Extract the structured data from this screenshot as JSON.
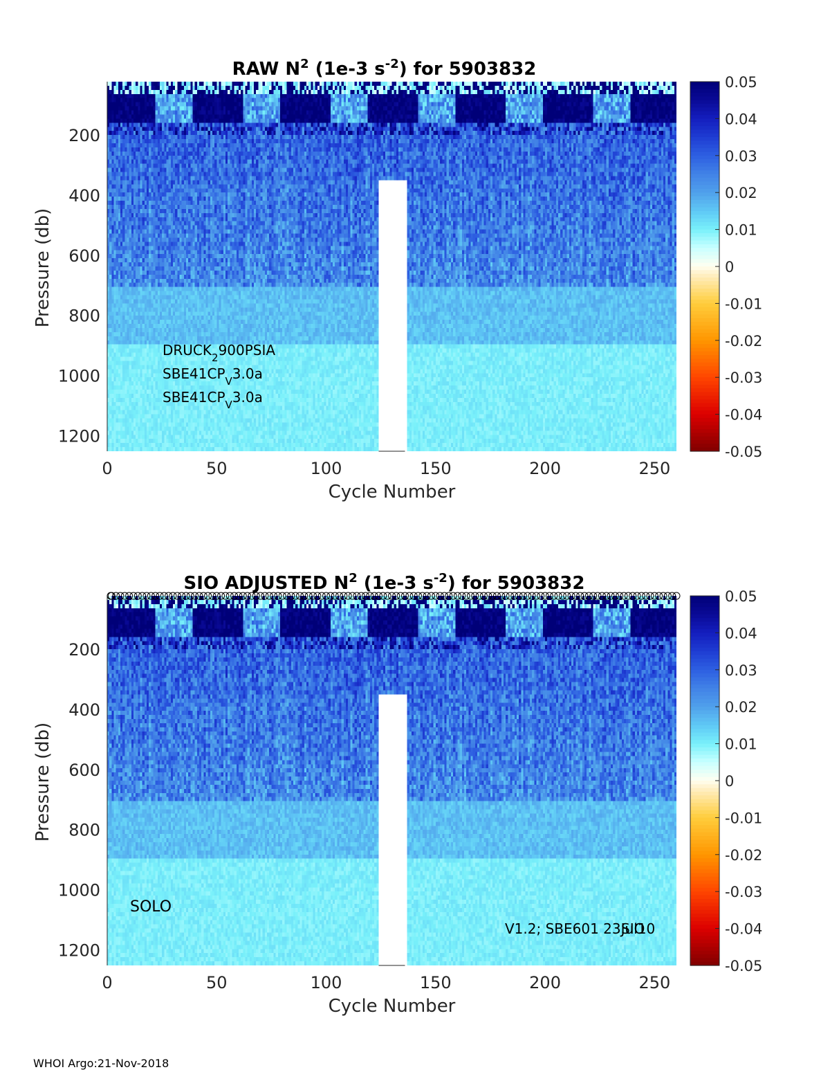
{
  "footer": "WHOI Argo:21-Nov-2018",
  "colorbar": {
    "ticks": [
      "0.05",
      "0.04",
      "0.03",
      "0.02",
      "0.01",
      "0",
      "-0.01",
      "-0.02",
      "-0.03",
      "-0.04",
      "-0.05"
    ]
  },
  "chart_data": [
    {
      "type": "heatmap",
      "title_main": "RAW N",
      "title_sup": "2",
      "title_mid": " (1e-3 s",
      "title_sup2": "-2",
      "title_end": ") for 5903832",
      "xlabel": "Cycle Number",
      "ylabel": "Pressure (db)",
      "xlim": [
        0,
        260
      ],
      "ylim": [
        1250,
        20
      ],
      "xticks": [
        "0",
        "50",
        "100",
        "150",
        "200",
        "250"
      ],
      "xtick_values": [
        0,
        50,
        100,
        150,
        200,
        250
      ],
      "yticks": [
        "200",
        "400",
        "600",
        "800",
        "1000",
        "1200"
      ],
      "ytick_values": [
        200,
        400,
        600,
        800,
        1000,
        1200
      ],
      "clim": [
        -0.05,
        0.05
      ],
      "gap_cycles": [
        124,
        136
      ],
      "annotations": [
        {
          "base": "DRUCK",
          "sub": "2",
          "rest": "900PSIA"
        },
        {
          "base": "SBE41CP",
          "sub": "V",
          "rest": "3.0a"
        },
        {
          "base": "SBE41CP",
          "sub": "V",
          "rest": "3.0a"
        }
      ],
      "has_markers": false
    },
    {
      "type": "heatmap",
      "title_main": "SIO  ADJUSTED N",
      "title_sup": "2",
      "title_mid": " (1e-3 s",
      "title_sup2": "-2",
      "title_end": ") for 5903832",
      "xlabel": "Cycle Number",
      "ylabel": "Pressure (db)",
      "xlim": [
        0,
        260
      ],
      "ylim": [
        1250,
        20
      ],
      "xticks": [
        "0",
        "50",
        "100",
        "150",
        "200",
        "250"
      ],
      "xtick_values": [
        0,
        50,
        100,
        150,
        200,
        250
      ],
      "yticks": [
        "200",
        "400",
        "600",
        "800",
        "1000",
        "1200"
      ],
      "ytick_values": [
        200,
        400,
        600,
        800,
        1000,
        1200
      ],
      "clim": [
        -0.05,
        0.05
      ],
      "gap_cycles": [
        124,
        136
      ],
      "label_left": "SOLO",
      "label_right_a": "V1.2; SBE601 23Jul10",
      "label_right_b": "SIO",
      "has_markers": true
    }
  ]
}
